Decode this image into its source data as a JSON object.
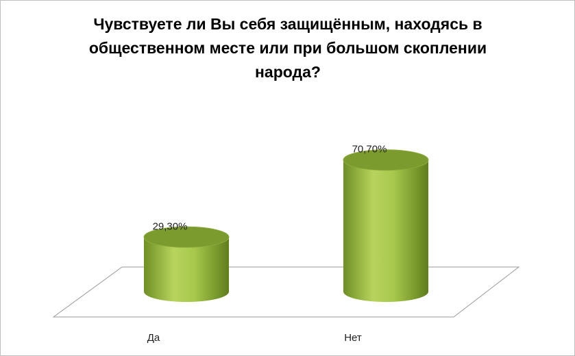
{
  "chart_data": {
    "type": "bar",
    "title": "Чувствуете ли Вы себя защищённым, находясь в общественном месте или при большом скоплении народа?",
    "categories": [
      "Да",
      "Нет"
    ],
    "values": [
      29.3,
      70.7
    ],
    "value_labels": [
      "29,30%",
      "70,70%"
    ],
    "color": "#8fb03c"
  }
}
